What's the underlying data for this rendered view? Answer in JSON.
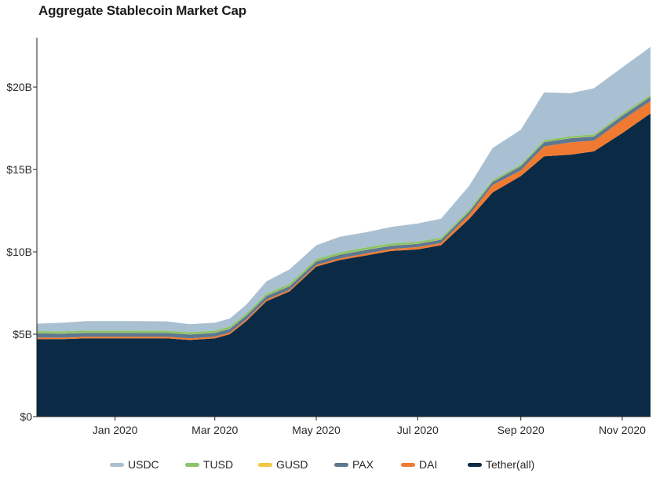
{
  "title": "Aggregate Stablecoin Market Cap",
  "chart_data": {
    "type": "area",
    "stacked": true,
    "x_unit": "date",
    "x_range": [
      "2019-11-15",
      "2020-11-18"
    ],
    "ylim": [
      0,
      23
    ],
    "y_ticks": [
      {
        "value": 0,
        "label": "$0"
      },
      {
        "value": 5,
        "label": "$5B"
      },
      {
        "value": 10,
        "label": "$10B"
      },
      {
        "value": 15,
        "label": "$15B"
      },
      {
        "value": 20,
        "label": "$20B"
      }
    ],
    "x_ticks": [
      {
        "date": "2020-01-01",
        "label": "Jan 2020"
      },
      {
        "date": "2020-03-01",
        "label": "Mar 2020"
      },
      {
        "date": "2020-05-01",
        "label": "May 2020"
      },
      {
        "date": "2020-07-01",
        "label": "Jul 2020"
      },
      {
        "date": "2020-09-01",
        "label": "Sep 2020"
      },
      {
        "date": "2020-11-01",
        "label": "Nov 2020"
      }
    ],
    "grid": false,
    "legend_position": "bottom",
    "units": "billions USD",
    "x": [
      "2019-11-15",
      "2019-12-01",
      "2019-12-15",
      "2020-01-01",
      "2020-01-15",
      "2020-02-01",
      "2020-02-15",
      "2020-03-01",
      "2020-03-10",
      "2020-03-20",
      "2020-04-01",
      "2020-04-15",
      "2020-05-01",
      "2020-05-15",
      "2020-06-01",
      "2020-06-15",
      "2020-07-01",
      "2020-07-15",
      "2020-08-01",
      "2020-08-15",
      "2020-09-01",
      "2020-09-15",
      "2020-10-01",
      "2020-10-15",
      "2020-11-01",
      "2020-11-18"
    ],
    "series": [
      {
        "name": "Tether(all)",
        "color": "#0a2a45",
        "values": [
          4.7,
          4.7,
          4.75,
          4.75,
          4.75,
          4.75,
          4.65,
          4.75,
          5.0,
          5.8,
          7.0,
          7.6,
          9.1,
          9.5,
          9.8,
          10.05,
          10.15,
          10.4,
          12.0,
          13.6,
          14.6,
          15.8,
          15.9,
          16.1,
          17.2,
          18.4
        ]
      },
      {
        "name": "DAI",
        "color": "#f07a31",
        "values": [
          0.1,
          0.1,
          0.1,
          0.1,
          0.1,
          0.1,
          0.1,
          0.1,
          0.1,
          0.1,
          0.1,
          0.1,
          0.1,
          0.1,
          0.12,
          0.12,
          0.14,
          0.14,
          0.25,
          0.45,
          0.35,
          0.6,
          0.75,
          0.65,
          0.8,
          0.75
        ]
      },
      {
        "name": "PAX",
        "color": "#5d7891",
        "values": [
          0.25,
          0.24,
          0.24,
          0.24,
          0.23,
          0.23,
          0.23,
          0.23,
          0.23,
          0.23,
          0.22,
          0.22,
          0.22,
          0.22,
          0.22,
          0.2,
          0.2,
          0.2,
          0.2,
          0.2,
          0.25,
          0.25,
          0.25,
          0.25,
          0.26,
          0.26
        ]
      },
      {
        "name": "GUSD",
        "color": "#f4c542",
        "values": [
          0.01,
          0.01,
          0.01,
          0.01,
          0.01,
          0.01,
          0.01,
          0.01,
          0.01,
          0.01,
          0.01,
          0.01,
          0.01,
          0.01,
          0.01,
          0.01,
          0.01,
          0.01,
          0.01,
          0.01,
          0.01,
          0.01,
          0.01,
          0.01,
          0.01,
          0.01
        ]
      },
      {
        "name": "TUSD",
        "color": "#8cc46a",
        "values": [
          0.13,
          0.13,
          0.13,
          0.13,
          0.13,
          0.13,
          0.13,
          0.13,
          0.13,
          0.13,
          0.13,
          0.14,
          0.14,
          0.14,
          0.14,
          0.14,
          0.12,
          0.12,
          0.12,
          0.1,
          0.1,
          0.12,
          0.12,
          0.12,
          0.12,
          0.12
        ]
      },
      {
        "name": "USDC",
        "color": "#a9c0d2",
        "values": [
          0.45,
          0.52,
          0.57,
          0.57,
          0.58,
          0.56,
          0.49,
          0.48,
          0.48,
          0.53,
          0.75,
          0.87,
          0.83,
          0.94,
          0.92,
          0.99,
          1.1,
          1.14,
          1.43,
          1.94,
          2.1,
          2.9,
          2.6,
          2.8,
          2.8,
          2.9
        ]
      }
    ]
  },
  "legend": [
    {
      "label": "USDC",
      "color": "#a9c0d2"
    },
    {
      "label": "TUSD",
      "color": "#8cc46a"
    },
    {
      "label": "GUSD",
      "color": "#f4c542"
    },
    {
      "label": "PAX",
      "color": "#5d7891"
    },
    {
      "label": "DAI",
      "color": "#f07a31"
    },
    {
      "label": "Tether(all)",
      "color": "#0a2a45"
    }
  ]
}
